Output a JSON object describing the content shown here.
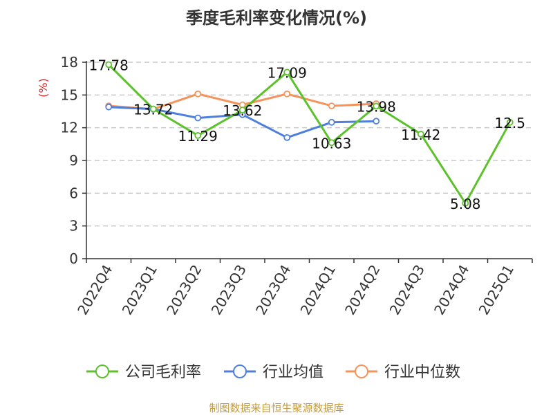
{
  "chart_data": {
    "type": "line",
    "title": "季度毛利率变化情况(%)",
    "ylabel": "(%)",
    "xlabel": "",
    "categories": [
      "2022Q4",
      "2023Q1",
      "2023Q2",
      "2023Q3",
      "2023Q4",
      "2024Q1",
      "2024Q2",
      "2024Q3",
      "2024Q4",
      "2025Q1"
    ],
    "ylim": [
      0,
      18
    ],
    "yticks": [
      0,
      3,
      6,
      9,
      12,
      15,
      18
    ],
    "grid": true,
    "legend_position": "bottom",
    "series": [
      {
        "name": "公司毛利率",
        "color": "#5cc12b",
        "values": [
          17.78,
          13.72,
          11.29,
          13.62,
          17.09,
          10.63,
          13.98,
          11.42,
          5.08,
          12.5
        ],
        "data_labels": [
          "17.78",
          "13.72",
          "11.29",
          "13.62",
          "17.09",
          "10.63",
          "13.98",
          "11.42",
          "5.08",
          "12.5"
        ]
      },
      {
        "name": "行业均值",
        "color": "#4f7fdc",
        "values": [
          13.9,
          13.7,
          12.9,
          13.2,
          11.1,
          12.5,
          12.6,
          null,
          null,
          null
        ]
      },
      {
        "name": "行业中位数",
        "color": "#f5935a",
        "values": [
          14.0,
          13.7,
          15.1,
          14.1,
          15.1,
          14.0,
          14.2,
          null,
          null,
          null
        ]
      }
    ],
    "source": "制图数据来自恒生聚源数据库",
    "source_color": "#c49a3a",
    "ylabel_color": "#e02020"
  }
}
